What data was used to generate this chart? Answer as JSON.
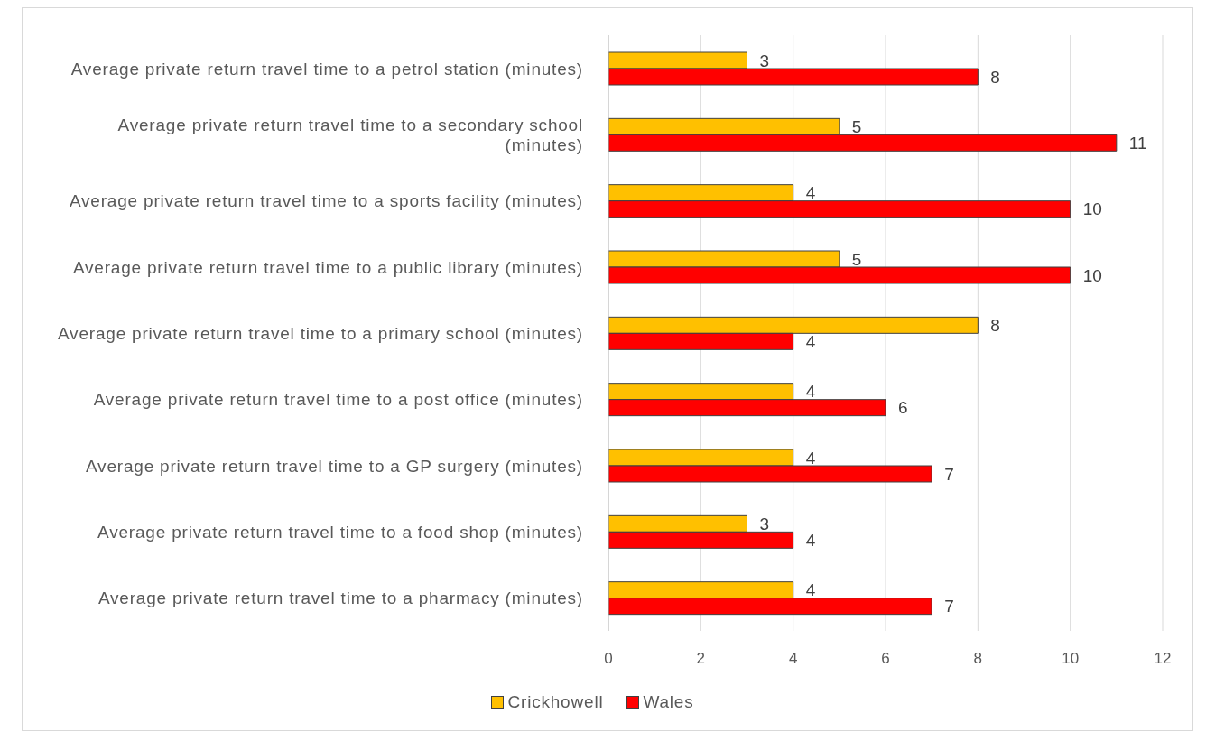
{
  "chart_data": {
    "type": "bar",
    "orientation": "horizontal",
    "categories": [
      "Average private return travel time to a petrol station (minutes)",
      "Average private return travel time to a secondary school (minutes)",
      "Average private return travel time to a sports facility (minutes)",
      "Average private return travel time to a public library (minutes)",
      "Average private return travel time to a primary school (minutes)",
      "Average private return travel time to a post office (minutes)",
      "Average private return travel time to a GP surgery (minutes)",
      "Average private return travel time to a food shop (minutes)",
      "Average private return travel time to a pharmacy (minutes)"
    ],
    "series": [
      {
        "name": "Crickhowell",
        "color": "#ffc000",
        "values": [
          3,
          5,
          4,
          5,
          8,
          4,
          4,
          3,
          4
        ]
      },
      {
        "name": "Wales",
        "color": "#ff0000",
        "values": [
          8,
          11,
          10,
          10,
          4,
          6,
          7,
          4,
          7
        ]
      }
    ],
    "xlim": [
      0,
      12
    ],
    "xticks": [
      0,
      2,
      4,
      6,
      8,
      10,
      12
    ],
    "grid": "x",
    "legend": "bottom",
    "data_labels": true
  }
}
